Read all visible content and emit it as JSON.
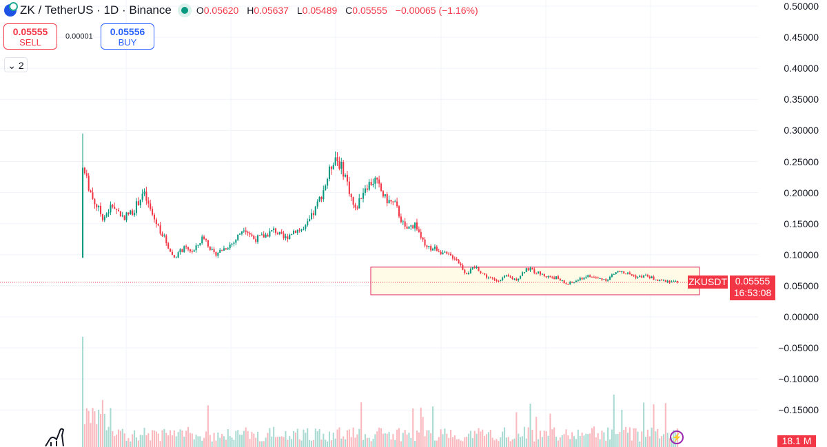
{
  "header": {
    "symbol": "ZK / TetherUS · 1D · Binance",
    "open_label": "O",
    "open": "0.05620",
    "high_label": "H",
    "high": "0.05637",
    "low_label": "L",
    "low": "0.05489",
    "close_label": "C",
    "close": "0.05555",
    "change": "−0.00065 (−1.16%)"
  },
  "trade": {
    "sell_price": "0.05555",
    "sell_label": "SELL",
    "spread": "0.00001",
    "buy_price": "0.05556",
    "buy_label": "BUY"
  },
  "indicators_toggle": "2",
  "price_tag": {
    "symbol": "ZKUSDT",
    "price": "0.05555",
    "countdown": "16:53:08"
  },
  "volume_tag": "18.1 M",
  "colors": {
    "up": "#089981",
    "down": "#f23645",
    "rect_border": "#e0245e",
    "rect_fill": "#fffbe6"
  },
  "chart_data": {
    "type": "candlestick",
    "title": "ZK / TetherUS · 1D · Binance",
    "y_ticks": [
      "0.50000",
      "0.45000",
      "0.40000",
      "0.35000",
      "0.30000",
      "0.25000",
      "0.20000",
      "0.15000",
      "0.10000",
      "0.05000",
      "0.00000",
      "−0.05000",
      "−0.10000",
      "−0.15000"
    ],
    "ylim": [
      -0.17,
      0.5
    ],
    "first_candle": {
      "open": 0.095,
      "high": 0.295,
      "low": 0.095,
      "close": 0.24
    },
    "approx_closes": [
      0.24,
      0.19,
      0.16,
      0.18,
      0.16,
      0.17,
      0.2,
      0.16,
      0.13,
      0.095,
      0.11,
      0.105,
      0.13,
      0.1,
      0.11,
      0.12,
      0.145,
      0.125,
      0.13,
      0.14,
      0.125,
      0.14,
      0.14,
      0.17,
      0.21,
      0.26,
      0.23,
      0.17,
      0.21,
      0.22,
      0.19,
      0.18,
      0.14,
      0.15,
      0.11,
      0.11,
      0.1,
      0.095,
      0.07,
      0.08,
      0.065,
      0.058,
      0.065,
      0.06,
      0.078,
      0.072,
      0.065,
      0.063,
      0.052,
      0.058,
      0.066,
      0.062,
      0.06,
      0.073,
      0.07,
      0.064,
      0.066,
      0.058,
      0.058,
      0.05555
    ],
    "range_box": {
      "top": 0.08,
      "bottom": 0.0355
    },
    "last_price": 0.05555
  }
}
